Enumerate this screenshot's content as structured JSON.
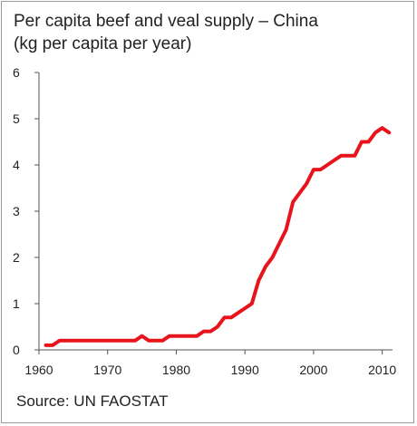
{
  "chart_data": {
    "type": "line",
    "title": "Per capita beef and veal supply – China",
    "subtitle": "(kg per capita per year)",
    "source": "Source: UN FAOSTAT",
    "xlim": [
      1960,
      2011.5
    ],
    "ylim": [
      0,
      6
    ],
    "x_ticks": [
      1960,
      1970,
      1980,
      1990,
      2000,
      2010
    ],
    "y_ticks": [
      0,
      1,
      2,
      3,
      4,
      5,
      6
    ],
    "grid": false,
    "legend": "none",
    "line_color": "#e8141b",
    "series": [
      {
        "x": [
          1961,
          1962,
          1963,
          1964,
          1965,
          1966,
          1967,
          1968,
          1969,
          1970,
          1971,
          1972,
          1973,
          1974,
          1975,
          1976,
          1977,
          1978,
          1979,
          1980,
          1981,
          1982,
          1983,
          1984,
          1985,
          1986,
          1987,
          1988,
          1989,
          1990,
          1991,
          1992,
          1993,
          1994,
          1995,
          1996,
          1997,
          1998,
          1999,
          2000,
          2001,
          2002,
          2003,
          2004,
          2005,
          2006,
          2007,
          2008,
          2009,
          2010,
          2011
        ],
        "values": [
          0.1,
          0.1,
          0.2,
          0.2,
          0.2,
          0.2,
          0.2,
          0.2,
          0.2,
          0.2,
          0.2,
          0.2,
          0.2,
          0.2,
          0.3,
          0.2,
          0.2,
          0.2,
          0.3,
          0.3,
          0.3,
          0.3,
          0.3,
          0.4,
          0.4,
          0.5,
          0.7,
          0.7,
          0.8,
          0.9,
          1.0,
          1.5,
          1.8,
          2.0,
          2.3,
          2.6,
          3.2,
          3.4,
          3.6,
          3.9,
          3.9,
          4.0,
          4.1,
          4.2,
          4.2,
          4.2,
          4.5,
          4.5,
          4.7,
          4.8,
          4.7
        ]
      }
    ]
  }
}
